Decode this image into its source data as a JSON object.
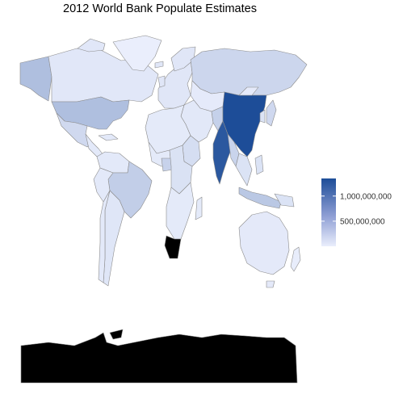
{
  "title": "2012 World Bank Populate Estimates",
  "colors": {
    "low": "#eaeefc",
    "high": "#1d4d98",
    "no_data": "#000000",
    "border": "#8c8c8c"
  },
  "legend": {
    "min": 0,
    "max": 1350000000,
    "breaks": [
      {
        "value": 500000000,
        "label": "500,000,000"
      },
      {
        "value": 1000000000,
        "label": "1,000,000,000"
      }
    ]
  },
  "regions": [
    {
      "id": "china",
      "value": 1350000000
    },
    {
      "id": "india",
      "value": 1240000000
    },
    {
      "id": "united-states",
      "value": 314000000
    },
    {
      "id": "brazil",
      "value": 199000000
    },
    {
      "id": "russia",
      "value": 143000000
    },
    {
      "id": "indonesia",
      "value": 247000000
    },
    {
      "id": "pakistan",
      "value": 179000000
    },
    {
      "id": "bangladesh",
      "value": 155000000
    },
    {
      "id": "nigeria",
      "value": 169000000
    },
    {
      "id": "japan",
      "value": 127000000
    },
    {
      "id": "mexico",
      "value": 120000000
    },
    {
      "id": "canada",
      "value": 35000000
    },
    {
      "id": "australia",
      "value": 23000000
    },
    {
      "id": "argentina",
      "value": 41000000
    },
    {
      "id": "kazakhstan",
      "value": 17000000
    },
    {
      "id": "greenland",
      "value": 57000
    },
    {
      "id": "alaska",
      "value": 314000000
    },
    {
      "id": "africa",
      "value": 20000000
    },
    {
      "id": "ethiopia",
      "value": 92000000
    },
    {
      "id": "congo",
      "value": 66000000
    },
    {
      "id": "europe",
      "value": 40000000
    },
    {
      "id": "middle-east",
      "value": 30000000
    },
    {
      "id": "south-america",
      "value": 25000000
    },
    {
      "id": "southeast-asia",
      "value": 60000000
    },
    {
      "id": "new-zealand",
      "value": 4400000
    },
    {
      "id": "south-africa",
      "value": null
    },
    {
      "id": "antarctica",
      "value": null
    }
  ]
}
